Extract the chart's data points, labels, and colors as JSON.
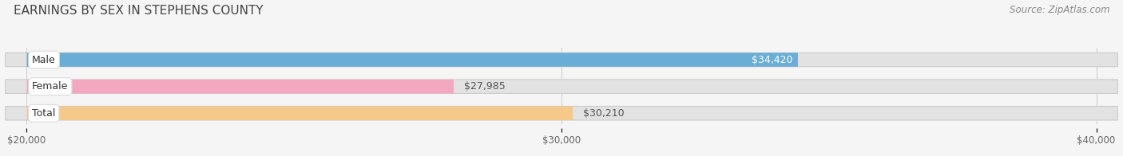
{
  "title": "EARNINGS BY SEX IN STEPHENS COUNTY",
  "source": "Source: ZipAtlas.com",
  "categories": [
    "Male",
    "Female",
    "Total"
  ],
  "values": [
    34420,
    27985,
    30210
  ],
  "bar_colors": [
    "#6aadd5",
    "#f4a8bf",
    "#f5c98a"
  ],
  "bar_bg_color": "#e2e2e2",
  "xlim": [
    20000,
    40000
  ],
  "xticks": [
    20000,
    30000,
    40000
  ],
  "xtick_labels": [
    "$20,000",
    "$30,000",
    "$40,000"
  ],
  "value_label_inside": [
    true,
    false,
    false
  ],
  "value_labels": [
    "$34,420",
    "$27,985",
    "$30,210"
  ],
  "title_fontsize": 11,
  "source_fontsize": 8.5,
  "tick_fontsize": 8.5,
  "bar_label_fontsize": 9,
  "figsize": [
    14.06,
    1.96
  ],
  "dpi": 100
}
